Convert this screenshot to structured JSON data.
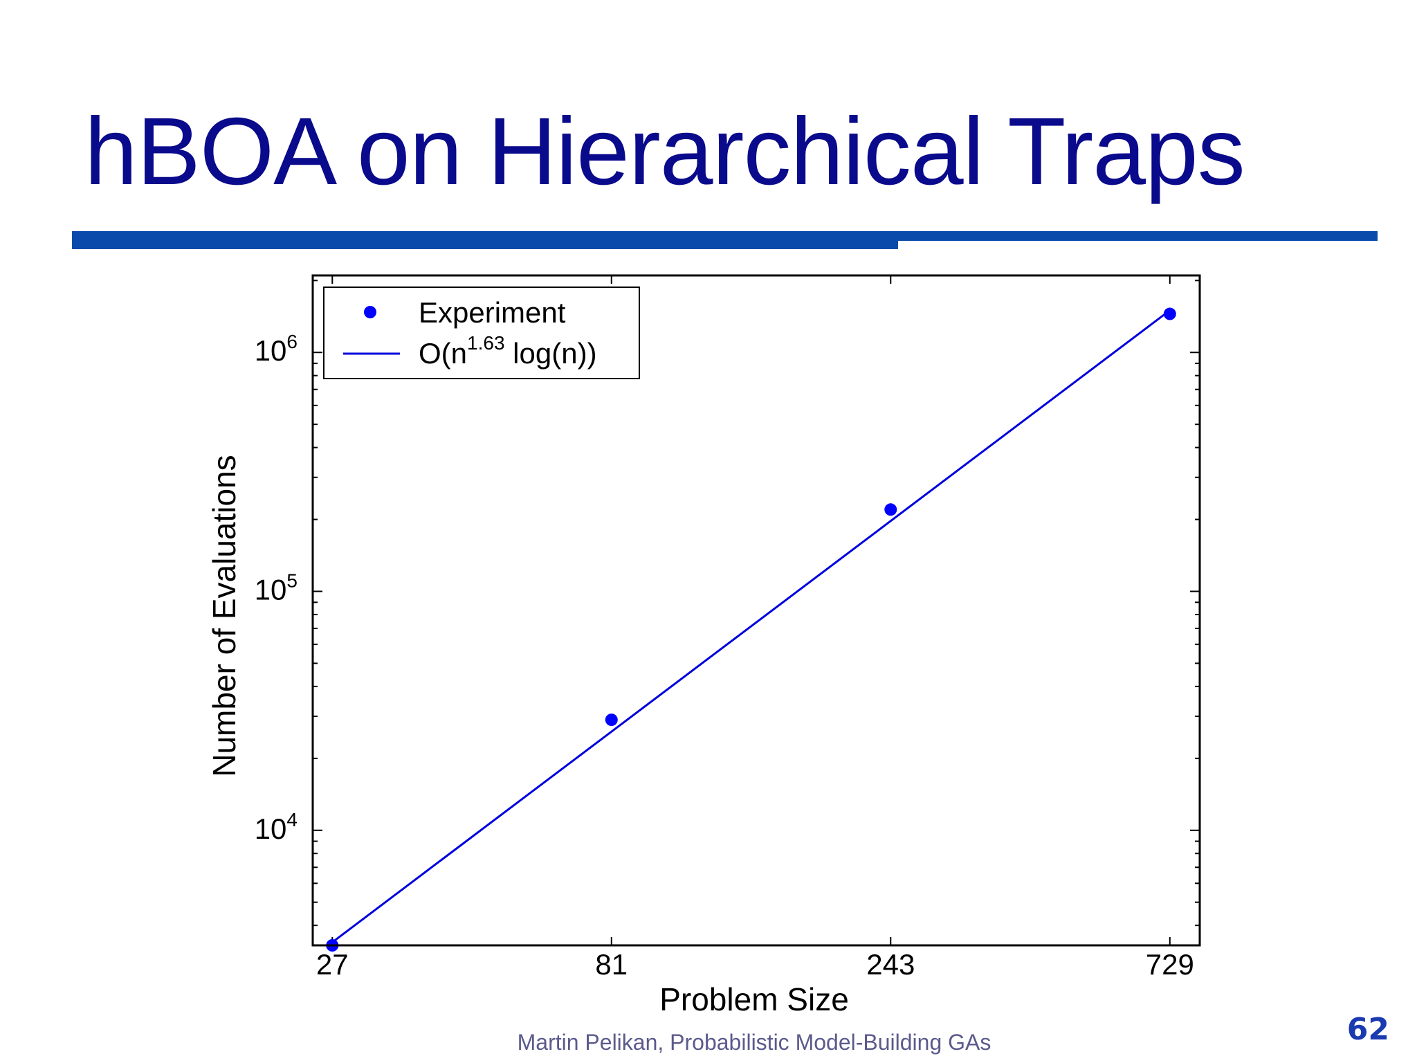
{
  "slide": {
    "title": "hBOA on Hierarchical Traps",
    "footer": "Martin Pelikan, Probabilistic Model-Building GAs",
    "page_number": "62",
    "title_color": "#0a0a8c",
    "rule_color": "#0a4aaa"
  },
  "chart_data": {
    "type": "scatter",
    "xlabel": "Problem Size",
    "ylabel": "Number of Evaluations",
    "x_scale": "log",
    "y_scale": "log",
    "x_ticks": [
      27,
      81,
      243,
      729
    ],
    "x_tick_labels": [
      "27",
      "81",
      "243",
      "729"
    ],
    "y_ticks": [
      10000,
      100000,
      1000000
    ],
    "y_tick_labels": [
      {
        "base": "10",
        "exp": "4"
      },
      {
        "base": "10",
        "exp": "5"
      },
      {
        "base": "10",
        "exp": "6"
      }
    ],
    "xlim": [
      25,
      820
    ],
    "ylim": [
      3300,
      2100000
    ],
    "grid": false,
    "legend_position": "top-left",
    "series": [
      {
        "name": "Experiment",
        "kind": "points",
        "color": "#0000ff",
        "x": [
          27,
          81,
          243,
          729
        ],
        "y": [
          3300,
          29000,
          220000,
          1450000
        ]
      },
      {
        "name": "O(n^1.63 log(n))",
        "kind": "line",
        "color": "#0000dd",
        "x": [
          27,
          729
        ],
        "y": [
          3400,
          1500000
        ]
      }
    ],
    "legend": [
      {
        "label": "Experiment"
      },
      {
        "label_prefix": "O(n",
        "label_sup": "1.63",
        "label_suffix": " log(n))"
      }
    ]
  }
}
